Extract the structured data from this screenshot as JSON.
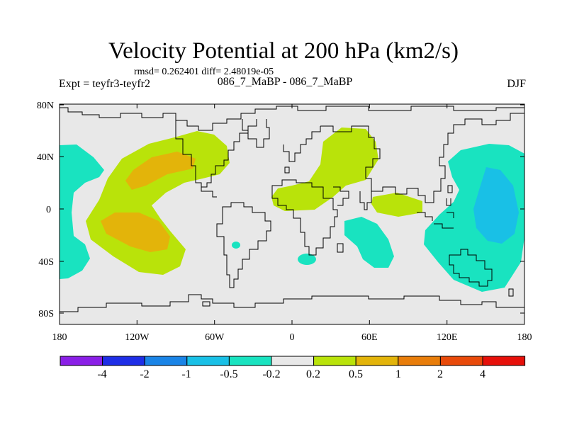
{
  "header": {
    "title": "Velocity Potential at 200 hPa (km2/s)",
    "stats": "rmsd= 0.262401 diff= 2.48019e-05",
    "experiment": "Expt = teyfr3-teyfr2",
    "run": "086_7_MaBP - 086_7_MaBP",
    "season": "DJF"
  },
  "map": {
    "lon_labels": [
      "180",
      "120W",
      "60W",
      "0",
      "60E",
      "120E",
      "180"
    ],
    "lat_labels": [
      "80N",
      "40N",
      "0",
      "40S",
      "80S"
    ],
    "background_color": "#e8e8e8",
    "coast_color": "#000000"
  },
  "colorbar": {
    "colors": [
      "#8a1fe6",
      "#1e2ee6",
      "#1a84e6",
      "#19c0e6",
      "#19e3c0",
      "#e8e8e8",
      "#b9e30a",
      "#e3b40a",
      "#e87d0a",
      "#e84a0a",
      "#e6100a"
    ],
    "labels": [
      "-4",
      "-2",
      "-1",
      "-0.5",
      "-0.2",
      "0.2",
      "0.5",
      "1",
      "2",
      "4"
    ]
  },
  "chart_data": {
    "type": "map-contour",
    "title": "Velocity Potential at 200 hPa (km2/s)",
    "levels": [
      -4,
      -2,
      -1,
      -0.5,
      -0.2,
      0.2,
      0.5,
      1,
      2,
      4
    ],
    "lon_range": [
      -180,
      180
    ],
    "lat_range": [
      -90,
      90
    ],
    "features": [
      {
        "name": "North Pacific positive center",
        "lon": -140,
        "lat": 25,
        "value_range": "1 to 2"
      },
      {
        "name": "South Pacific positive center",
        "lon": -130,
        "lat": -20,
        "value_range": "1 to 2"
      },
      {
        "name": "Africa / Middle East positive",
        "lon": 30,
        "lat": 20,
        "value_range": "0.5 to 1"
      },
      {
        "name": "West Pacific negative center",
        "lon": 160,
        "lat": -5,
        "value_range": "-1 to -0.5"
      },
      {
        "name": "Indian Ocean negative",
        "lon": 70,
        "lat": -30,
        "value_range": "-0.5 to -0.2"
      },
      {
        "name": "Eastern dateline negative",
        "lon": -175,
        "lat": 30,
        "value_range": "-0.5 to -0.2"
      }
    ]
  }
}
